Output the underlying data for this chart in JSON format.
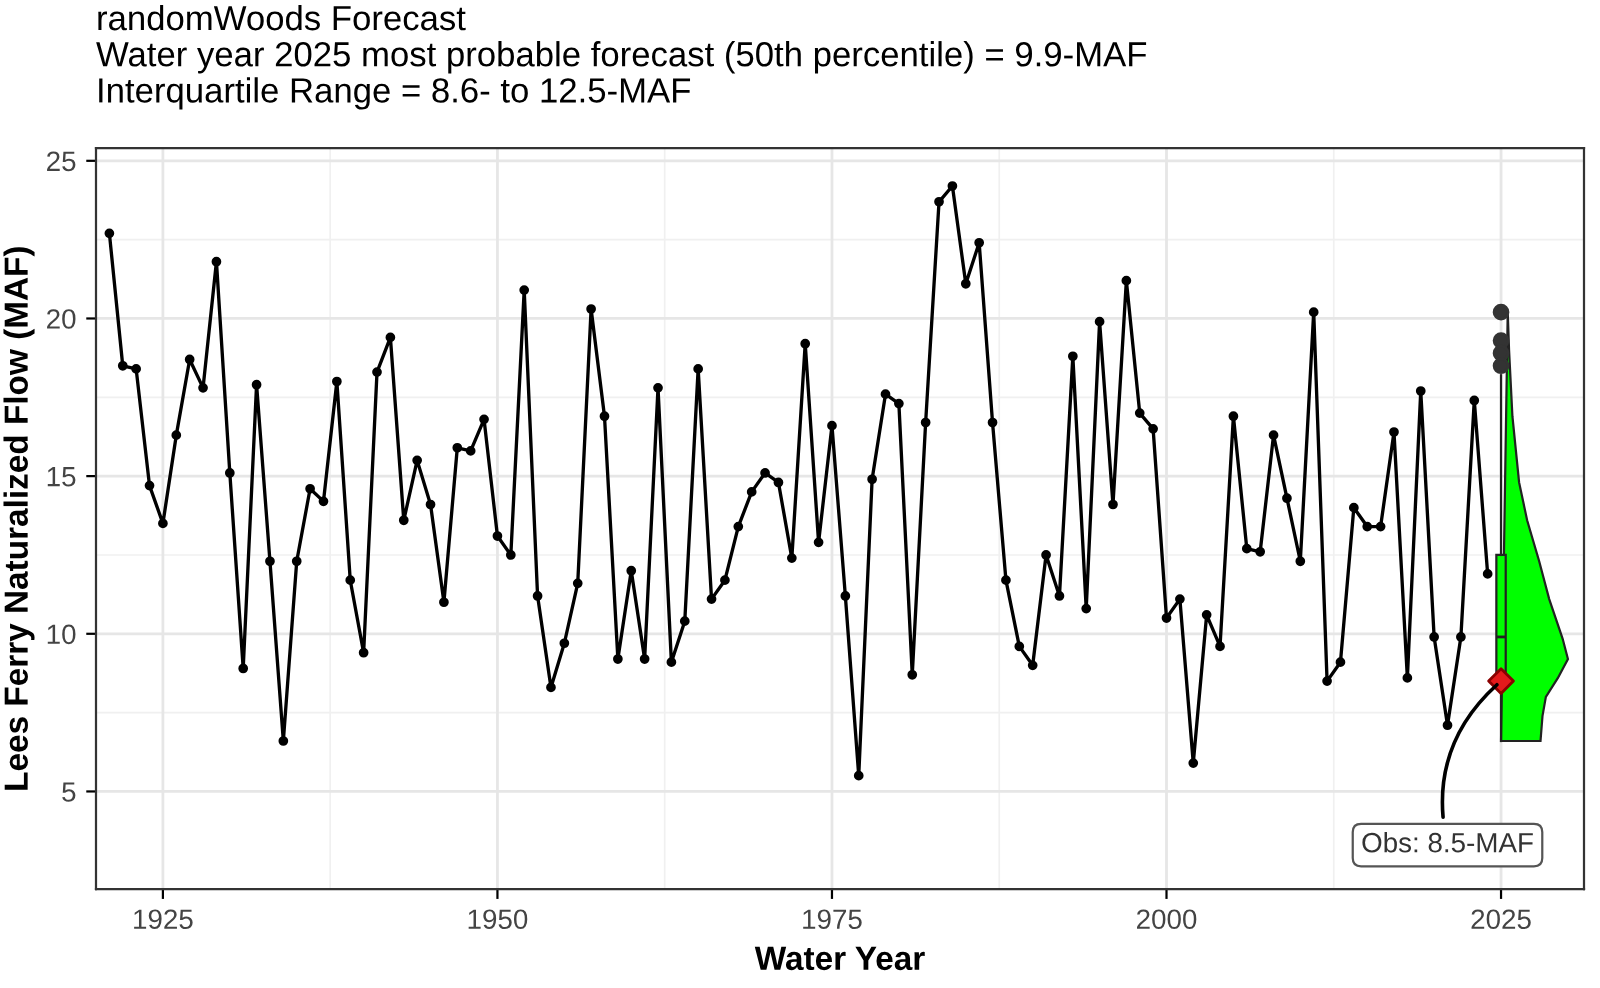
{
  "chart_data": {
    "type": "line",
    "title": "randomWoods Forecast\nWater year 2025 most probable forecast (50th percentile) = 9.9-MAF\nInterquartile Range = 8.6- to 12.5-MAF",
    "xlabel": "Water Year",
    "ylabel": "Lees Ferry Naturalized Flow (MAF)",
    "xlim": [
      1920,
      2031.2
    ],
    "ylim": [
      1.9,
      25.4
    ],
    "xticks": [
      1925,
      1950,
      1975,
      2000,
      2025
    ],
    "yticks": [
      5,
      10,
      15,
      20,
      25
    ],
    "grid": true,
    "series": [
      {
        "color": "#000000",
        "marker": "circle",
        "line_style": "solid",
        "x": [
          1921,
          1922,
          1923,
          1924,
          1925,
          1926,
          1927,
          1928,
          1929,
          1930,
          1931,
          1932,
          1933,
          1934,
          1935,
          1936,
          1937,
          1938,
          1939,
          1940,
          1941,
          1942,
          1943,
          1944,
          1945,
          1946,
          1947,
          1948,
          1949,
          1950,
          1951,
          1952,
          1953,
          1954,
          1955,
          1956,
          1957,
          1958,
          1959,
          1960,
          1961,
          1962,
          1963,
          1964,
          1965,
          1966,
          1967,
          1968,
          1969,
          1970,
          1971,
          1972,
          1973,
          1974,
          1975,
          1976,
          1977,
          1978,
          1979,
          1980,
          1981,
          1982,
          1983,
          1984,
          1985,
          1986,
          1987,
          1988,
          1989,
          1990,
          1991,
          1992,
          1993,
          1994,
          1995,
          1996,
          1997,
          1998,
          1999,
          2000,
          2001,
          2002,
          2003,
          2004,
          2005,
          2006,
          2007,
          2008,
          2009,
          2010,
          2011,
          2012,
          2013,
          2014,
          2015,
          2016,
          2017,
          2018,
          2019,
          2020,
          2021,
          2022,
          2023,
          2024
        ],
        "values": [
          22.7,
          18.5,
          18.4,
          14.7,
          13.5,
          16.3,
          18.7,
          17.8,
          21.8,
          15.1,
          8.9,
          17.9,
          12.3,
          6.6,
          12.3,
          14.6,
          14.2,
          18.0,
          11.7,
          9.4,
          18.3,
          19.4,
          13.6,
          15.5,
          14.1,
          11.0,
          15.9,
          15.8,
          16.8,
          13.1,
          12.5,
          20.9,
          11.2,
          8.3,
          9.7,
          11.6,
          20.3,
          16.9,
          9.2,
          12.0,
          9.2,
          17.8,
          9.1,
          10.4,
          18.4,
          11.1,
          11.7,
          13.4,
          14.5,
          15.1,
          14.8,
          12.4,
          19.2,
          12.9,
          16.6,
          11.2,
          5.5,
          14.9,
          17.6,
          17.3,
          8.7,
          16.7,
          23.7,
          24.2,
          21.1,
          22.4,
          16.7,
          11.7,
          9.6,
          9.0,
          12.5,
          11.2,
          18.8,
          10.8,
          19.9,
          14.1,
          21.2,
          17.0,
          16.5,
          10.5,
          11.1,
          5.9,
          10.6,
          9.6,
          16.9,
          12.7,
          12.6,
          16.3,
          14.3,
          12.3,
          20.2,
          8.5,
          9.1,
          14.0,
          13.4,
          13.4,
          16.4,
          8.6,
          17.7,
          9.9,
          7.1,
          9.9,
          17.4,
          11.9
        ]
      },
      {
        "type": "area",
        "color": "#00ff00",
        "x": [
          2025.5,
          2025.6,
          2025.85,
          2026.35,
          2026.95,
          2027.85,
          2028.6,
          2029.6,
          2030.0,
          2029.25,
          2028.35,
          2028.1,
          2027.95,
          2025
        ],
        "values": [
          20.2,
          19.0,
          16.9,
          14.8,
          13.6,
          12.3,
          11.1,
          9.85,
          9.2,
          8.6,
          8.0,
          7.4,
          6.6,
          6.6
        ]
      },
      {
        "type": "box",
        "color": "#00ff00",
        "x": [
          2025
        ],
        "boxes": [
          {
            "low": 6.6,
            "q1": 8.6,
            "median": 9.9,
            "q3": 12.5,
            "high": 18.2,
            "outliers": [
              20.2,
              19.3,
              18.9,
              18.5
            ]
          }
        ]
      },
      {
        "type": "scatter",
        "marker": "diamond",
        "color": "#e41a1c",
        "x": [
          2025
        ],
        "values": [
          8.5
        ]
      }
    ],
    "annotations": [
      {
        "text": "Obs: 8.5-MAF",
        "x": 2025,
        "y": 8.5
      }
    ]
  }
}
